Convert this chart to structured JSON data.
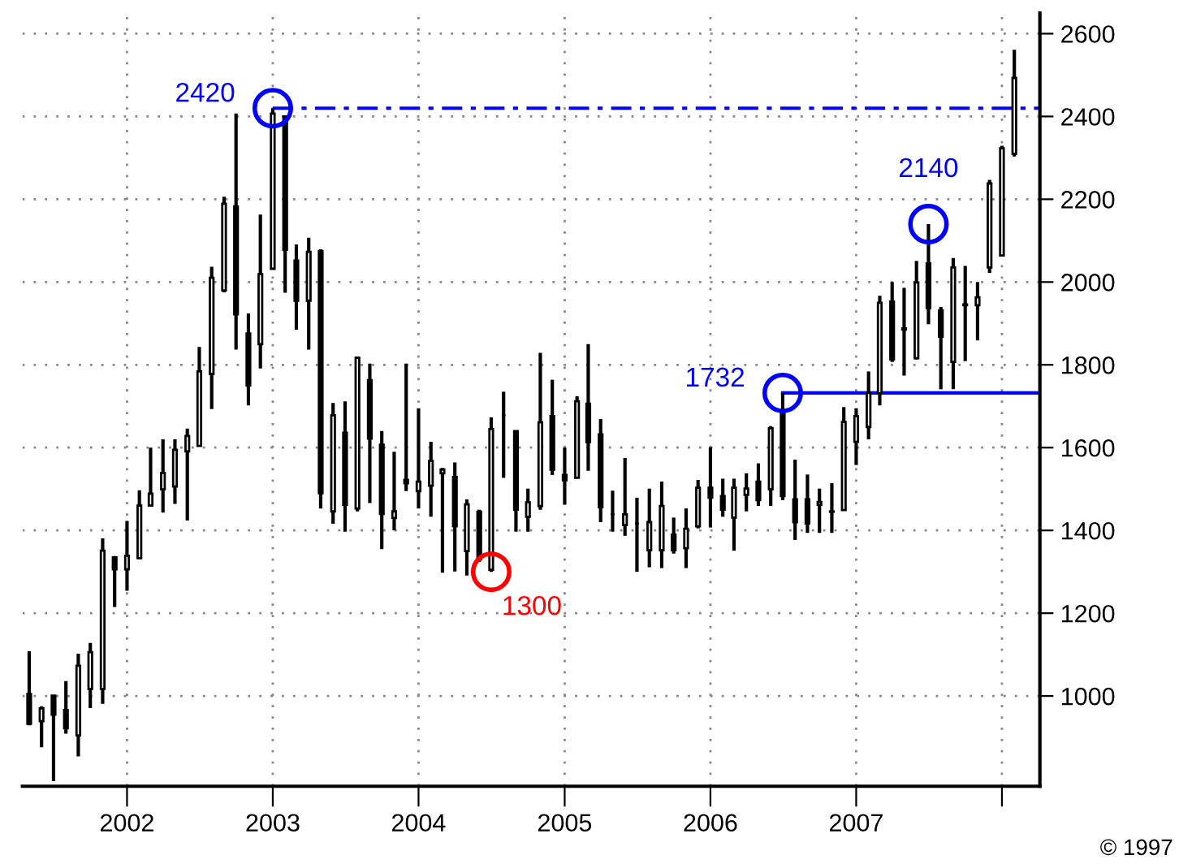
{
  "chart_data": {
    "type": "candlestick",
    "color": "#000000",
    "x": [
      "2001-05",
      "2001-06",
      "2001-07",
      "2001-08",
      "2001-09",
      "2001-10",
      "2001-11",
      "2001-12",
      "2002-01",
      "2002-02",
      "2002-03",
      "2002-04",
      "2002-05",
      "2002-06",
      "2002-07",
      "2002-08",
      "2002-09",
      "2002-10",
      "2002-11",
      "2002-12",
      "2003-01",
      "2003-02",
      "2003-03",
      "2003-04",
      "2003-05",
      "2003-06",
      "2003-07",
      "2003-08",
      "2003-09",
      "2003-10",
      "2003-11",
      "2003-12",
      "2004-01",
      "2004-02",
      "2004-03",
      "2004-04",
      "2004-05",
      "2004-06",
      "2004-07",
      "2004-08",
      "2004-09",
      "2004-10",
      "2004-11",
      "2004-12",
      "2005-01",
      "2005-02",
      "2005-03",
      "2005-04",
      "2005-05",
      "2005-06",
      "2005-07",
      "2005-08",
      "2005-09",
      "2005-10",
      "2005-11",
      "2005-12",
      "2006-01",
      "2006-02",
      "2006-03",
      "2006-04",
      "2006-05",
      "2006-06",
      "2006-07",
      "2006-08",
      "2006-09",
      "2006-10",
      "2006-11",
      "2006-12",
      "2007-01",
      "2007-02",
      "2007-03",
      "2007-04",
      "2007-05",
      "2007-06",
      "2007-07",
      "2007-08",
      "2007-09",
      "2007-10",
      "2007-11",
      "2007-12",
      "2008-01",
      "2008-02"
    ],
    "ohlc": [
      [
        1005,
        1108,
        929,
        933
      ],
      [
        939,
        975,
        876,
        970
      ],
      [
        1001,
        1001,
        794,
        955
      ],
      [
        966,
        1036,
        909,
        922
      ],
      [
        905,
        1102,
        854,
        1073
      ],
      [
        1017,
        1128,
        971,
        1106
      ],
      [
        1017,
        1381,
        981,
        1351
      ],
      [
        1335,
        1338,
        1215,
        1306
      ],
      [
        1306,
        1423,
        1254,
        1339
      ],
      [
        1333,
        1497,
        1331,
        1460
      ],
      [
        1460,
        1600,
        1460,
        1489
      ],
      [
        1499,
        1620,
        1443,
        1539
      ],
      [
        1506,
        1620,
        1464,
        1595
      ],
      [
        1591,
        1646,
        1424,
        1628
      ],
      [
        1604,
        1843,
        1604,
        1784
      ],
      [
        1778,
        2037,
        1693,
        2010
      ],
      [
        1980,
        2206,
        1975,
        2189
      ],
      [
        2183,
        2407,
        1837,
        1922
      ],
      [
        1876,
        1924,
        1702,
        1750
      ],
      [
        1850,
        2163,
        1791,
        2019
      ],
      [
        2032,
        2420,
        2032,
        2407
      ],
      [
        2400,
        2403,
        1974,
        2078
      ],
      [
        2052,
        2091,
        1885,
        1955
      ],
      [
        1955,
        2107,
        1837,
        2073
      ],
      [
        2075,
        2079,
        1453,
        1490
      ],
      [
        1446,
        1708,
        1416,
        1678
      ],
      [
        1636,
        1712,
        1397,
        1462
      ],
      [
        1453,
        1820,
        1446,
        1817
      ],
      [
        1763,
        1803,
        1466,
        1622
      ],
      [
        1607,
        1640,
        1355,
        1440
      ],
      [
        1430,
        1590,
        1400,
        1446
      ],
      [
        1522,
        1803,
        1495,
        1514
      ],
      [
        1495,
        1695,
        1453,
        1518
      ],
      [
        1508,
        1614,
        1433,
        1568
      ],
      [
        1538,
        1551,
        1298,
        1547
      ],
      [
        1529,
        1564,
        1301,
        1410
      ],
      [
        1350,
        1475,
        1291,
        1463
      ],
      [
        1445,
        1450,
        1324,
        1330
      ],
      [
        1305,
        1673,
        1300,
        1645
      ],
      [
        1678,
        1735,
        1527,
        1678
      ],
      [
        1640,
        1640,
        1397,
        1450
      ],
      [
        1433,
        1501,
        1397,
        1468
      ],
      [
        1459,
        1829,
        1450,
        1661
      ],
      [
        1676,
        1764,
        1534,
        1547
      ],
      [
        1534,
        1600,
        1462,
        1521
      ],
      [
        1527,
        1724,
        1527,
        1712
      ],
      [
        1706,
        1850,
        1544,
        1613
      ],
      [
        1632,
        1669,
        1420,
        1456
      ],
      [
        1439,
        1496,
        1397,
        1439
      ],
      [
        1413,
        1575,
        1387,
        1439
      ],
      [
        1417,
        1479,
        1300,
        1417
      ],
      [
        1352,
        1501,
        1311,
        1420
      ],
      [
        1352,
        1518,
        1309,
        1459
      ],
      [
        1390,
        1431,
        1344,
        1352
      ],
      [
        1357,
        1453,
        1309,
        1404
      ],
      [
        1410,
        1522,
        1405,
        1503
      ],
      [
        1503,
        1601,
        1407,
        1479
      ],
      [
        1483,
        1525,
        1433,
        1450
      ],
      [
        1431,
        1525,
        1351,
        1503
      ],
      [
        1486,
        1538,
        1446,
        1501
      ],
      [
        1518,
        1562,
        1459,
        1473
      ],
      [
        1499,
        1652,
        1459,
        1647
      ],
      [
        1686,
        1732,
        1473,
        1483
      ],
      [
        1475,
        1571,
        1377,
        1420
      ],
      [
        1475,
        1535,
        1394,
        1417
      ],
      [
        1462,
        1501,
        1394,
        1469
      ],
      [
        1446,
        1514,
        1394,
        1445
      ],
      [
        1449,
        1698,
        1449,
        1662
      ],
      [
        1614,
        1695,
        1558,
        1676
      ],
      [
        1650,
        1784,
        1620,
        1732
      ],
      [
        1731,
        1967,
        1702,
        1950
      ],
      [
        1953,
        2000,
        1807,
        1813
      ],
      [
        1885,
        1986,
        1774,
        1888
      ],
      [
        1816,
        2051,
        1813,
        1999
      ],
      [
        2045,
        2140,
        1898,
        1937
      ],
      [
        1931,
        1940,
        1741,
        1868
      ],
      [
        1807,
        2058,
        1741,
        2035
      ],
      [
        1946,
        2039,
        1809,
        1944
      ],
      [
        1944,
        2000,
        1859,
        1963
      ],
      [
        2035,
        2247,
        2022,
        2238
      ],
      [
        2064,
        2329,
        2064,
        2323
      ],
      [
        2310,
        2561,
        2303,
        2493
      ]
    ],
    "series": [
      {
        "type": "line",
        "color": "#0000ff",
        "line_style": "dashed",
        "x": [
          "2003-01",
          "2008-04-05"
        ],
        "values": [
          2420,
          2420
        ]
      },
      {
        "type": "line",
        "color": "#0000ff",
        "line_style": "solid",
        "x": [
          "2006-07",
          "2008-04-05"
        ],
        "values": [
          1732,
          1732
        ]
      },
      {
        "type": "scatter",
        "marker": "circle",
        "x": [
          "2003-01",
          "2004-07",
          "2006-07",
          "2007-07"
        ],
        "values": [
          2420,
          1300,
          1732,
          2140
        ],
        "colors": [
          "#0000ff",
          "#ff0000",
          "#0000ff",
          "#0000ff"
        ],
        "value_labels": [
          "2420",
          "1300",
          "1732",
          "2140"
        ]
      }
    ],
    "annotations": [
      "© 1997"
    ],
    "xlim": [
      "2001-04-14",
      "2008-04-05"
    ],
    "xticks": [
      {
        "value": "2002",
        "label": "2002"
      },
      {
        "value": "2003",
        "label": "2003"
      },
      {
        "value": "2004",
        "label": "2004"
      },
      {
        "value": "2005",
        "label": "2005"
      },
      {
        "value": "2006",
        "label": "2006"
      },
      {
        "value": "2007",
        "label": "2007"
      },
      {
        "value": "2008",
        "label": null
      }
    ],
    "ylim": [
      782,
      2650
    ],
    "yticks": [
      1000,
      1200,
      1400,
      1600,
      1800,
      2000,
      2200,
      2400,
      2600
    ],
    "grid": true
  }
}
